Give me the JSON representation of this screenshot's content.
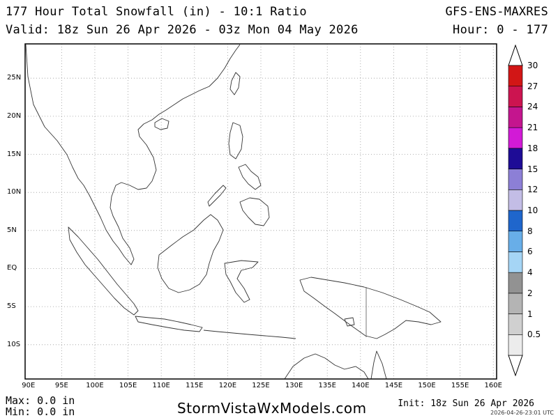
{
  "header": {
    "title": "177 Hour Total Snowfall (in) - 10:1 Ratio",
    "valid": "Valid: 18z Sun 26 Apr 2026 - 03z Mon 04 May 2026",
    "model": "GFS-ENS-MAXRES",
    "hours": "Hour: 0 - 177"
  },
  "map": {
    "lat_labels": [
      "25N",
      "20N",
      "15N",
      "10N",
      "5N",
      "EQ",
      "5S",
      "10S"
    ],
    "lon_labels": [
      "90E",
      "95E",
      "100E",
      "105E",
      "110E",
      "115E",
      "120E",
      "125E",
      "130E",
      "135E",
      "140E",
      "145E",
      "150E",
      "155E",
      "160E"
    ],
    "lat_range": [
      -14.5,
      29.5
    ],
    "lon_range": [
      89.5,
      160.5
    ],
    "grid": "dotted, every 5 degrees"
  },
  "legend": {
    "levels": [
      "0.5",
      "1",
      "2",
      "4",
      "6",
      "8",
      "10",
      "12",
      "15",
      "18",
      "21",
      "24",
      "27",
      "30"
    ],
    "colors": [
      "#ececec",
      "#d0d0d0",
      "#b4b4b4",
      "#929292",
      "#a5d5f5",
      "#68aee8",
      "#1f66cc",
      "#c3bde6",
      "#8c7fd6",
      "#1e0c96",
      "#d21ad6",
      "#c4158e",
      "#cc1450",
      "#d21616"
    ]
  },
  "footer": {
    "max": "Max: 0.0 in",
    "min": "Min: 0.0 in",
    "brand": "StormVistaWxModels.com",
    "init": "Init: 18z Sun 26 Apr 2026",
    "stamp": "2026-04-26-23:01 UTC"
  }
}
